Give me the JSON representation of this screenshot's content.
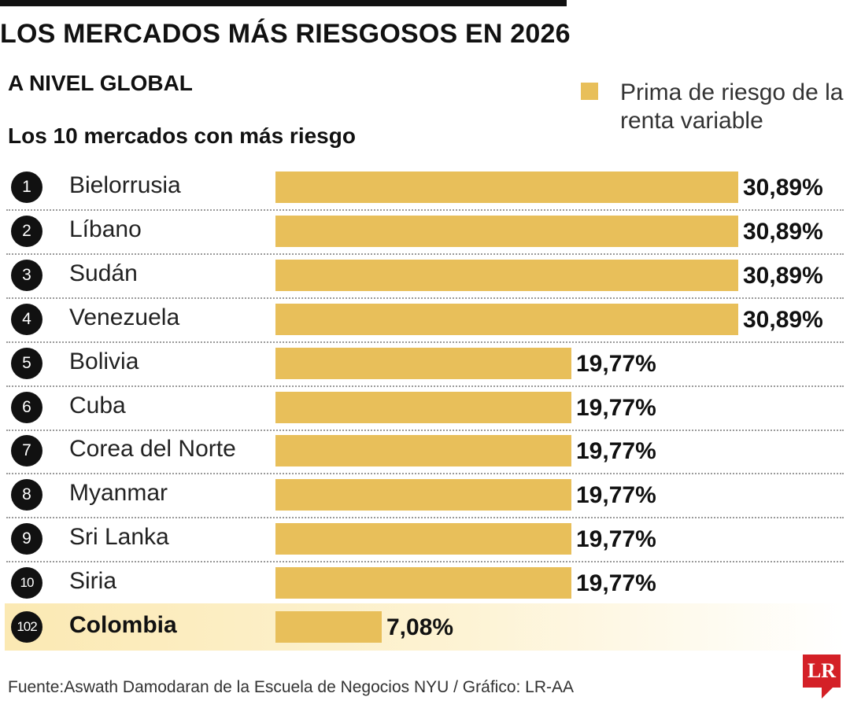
{
  "header": {
    "title": "LOS MERCADOS MÁS RIESGOSOS EN 2026",
    "subtitle": "A NIVEL GLOBAL",
    "section_label": "Los 10 mercados con más riesgo"
  },
  "legend": {
    "label": "Prima de riesgo de la renta variable",
    "color": "#e8bf5a"
  },
  "chart_data": {
    "type": "bar",
    "orientation": "horizontal",
    "title": "LOS MERCADOS MÁS RIESGOSOS EN 2026",
    "series_name": "Prima de riesgo de la renta variable",
    "bar_color": "#e8bf5a",
    "value_suffix": "%",
    "xlim": [
      0,
      30.89
    ],
    "rows": [
      {
        "rank": "1",
        "country": "Bielorrusia",
        "value": 30.89,
        "label": "30,89%"
      },
      {
        "rank": "2",
        "country": "Líbano",
        "value": 30.89,
        "label": "30,89%"
      },
      {
        "rank": "3",
        "country": "Sudán",
        "value": 30.89,
        "label": "30,89%"
      },
      {
        "rank": "4",
        "country": "Venezuela",
        "value": 30.89,
        "label": "30,89%"
      },
      {
        "rank": "5",
        "country": "Bolivia",
        "value": 19.77,
        "label": "19,77%"
      },
      {
        "rank": "6",
        "country": "Cuba",
        "value": 19.77,
        "label": "19,77%"
      },
      {
        "rank": "7",
        "country": "Corea del Norte",
        "value": 19.77,
        "label": "19,77%"
      },
      {
        "rank": "8",
        "country": "Myanmar",
        "value": 19.77,
        "label": "19,77%"
      },
      {
        "rank": "9",
        "country": "Sri Lanka",
        "value": 19.77,
        "label": "19,77%"
      },
      {
        "rank": "10",
        "country": "Siria",
        "value": 19.77,
        "label": "19,77%"
      },
      {
        "rank": "102",
        "country": "Colombia",
        "value": 7.08,
        "label": "7,08%",
        "highlight": true
      }
    ]
  },
  "footer": {
    "source": "Fuente:Aswath Damodaran de la Escuela de Negocios NYU / Gráfico: LR-AA",
    "logo_text": "LR",
    "logo_color": "#d42027"
  }
}
